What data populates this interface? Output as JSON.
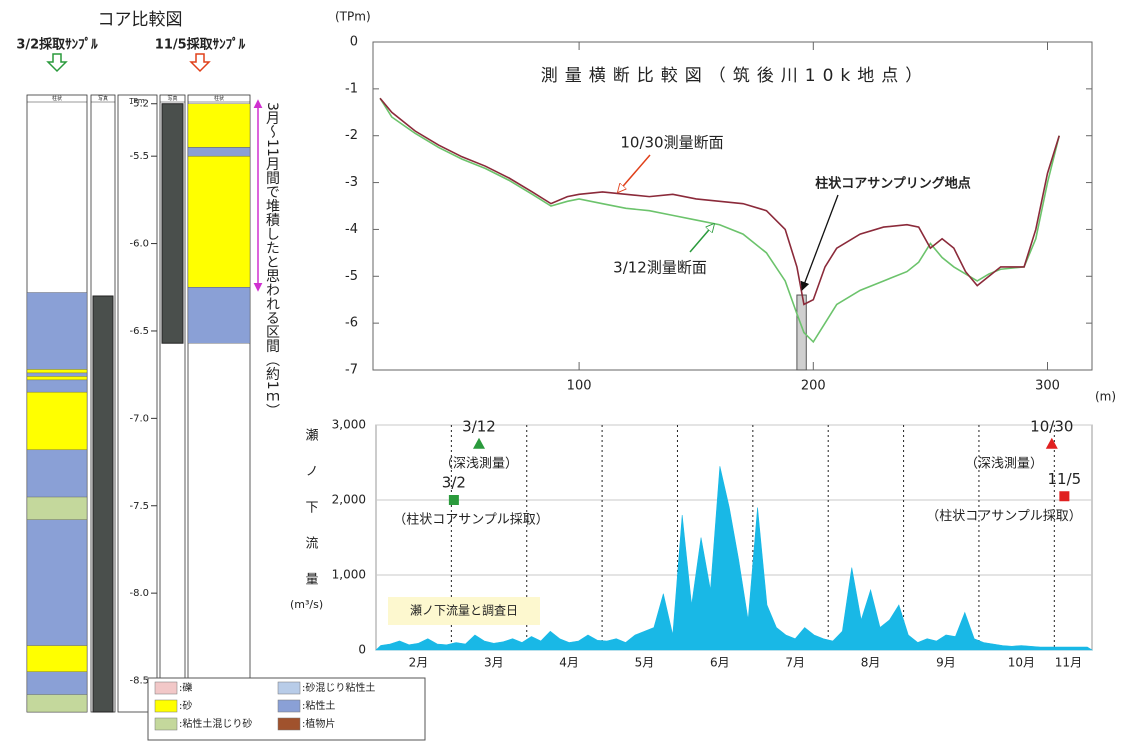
{
  "core_diagram": {
    "title": "コア比較図",
    "axis_label": "TPm",
    "ylim": [
      -8.68,
      -5.15
    ],
    "yticks": [
      -5.2,
      -5.5,
      {
        "value": -6,
        "label": "-6.0"
      },
      -6.5,
      {
        "value": -7,
        "label": "-7.0"
      },
      -7.5,
      {
        "value": -8,
        "label": "-8.0"
      },
      -8.5
    ],
    "column_headers": [
      "柱状",
      "写真"
    ],
    "samples": [
      {
        "label": "3/2採取ｻﾝﾌﾟﾙ",
        "color": "#2a9a3c",
        "photo": [
          -6.3,
          -8.68
        ],
        "layers": [
          {
            "top": -6.28,
            "bottom": -8.68,
            "color": "#8aa0d6"
          },
          {
            "top": -6.72,
            "bottom": -6.74,
            "color": "#ffff00"
          },
          {
            "top": -6.76,
            "bottom": -6.78,
            "color": "#ffff00"
          },
          {
            "top": -6.85,
            "bottom": -7.18,
            "color": "#ffff00"
          },
          {
            "top": -7.45,
            "bottom": -7.58,
            "color": "#c4d89c"
          },
          {
            "top": -8.3,
            "bottom": -8.45,
            "color": "#ffff00"
          },
          {
            "top": -8.58,
            "bottom": -8.68,
            "color": "#c4d89c"
          }
        ]
      },
      {
        "label": "11/5採取ｻﾝﾌﾟﾙ",
        "color": "#e0401a",
        "photo": [
          -5.2,
          -6.57
        ],
        "layers": [
          {
            "top": -5.2,
            "bottom": -5.45,
            "color": "#ffff00"
          },
          {
            "top": -5.45,
            "bottom": -5.5,
            "color": "#8aa0d6"
          },
          {
            "top": -5.5,
            "bottom": -6.25,
            "color": "#ffff00"
          },
          {
            "top": -6.25,
            "bottom": -6.57,
            "color": "#8aa0d6"
          }
        ]
      }
    ],
    "deposit": {
      "text": "3月～11月間で堆積したと思われる区間（約1ｍ）",
      "color": "#d030d0",
      "range": [
        -5.2,
        -6.25
      ]
    },
    "legend": [
      {
        "label": ":礫",
        "color": "#f2c8c8"
      },
      {
        "label": ":砂混じり粘性土",
        "color": "#b8cce8"
      },
      {
        "label": ":砂",
        "color": "#ffff00"
      },
      {
        "label": ":粘性土",
        "color": "#8aa0d6"
      },
      {
        "label": ":粘性土混じり砂",
        "color": "#c4d89c"
      },
      {
        "label": ":植物片",
        "color": "#a0522d"
      }
    ]
  },
  "chart_data": [
    {
      "type": "line",
      "title": "測量横断比較図（筑後川10k地点）",
      "ylabel": "(TPm)",
      "xlabel": "(m)",
      "xlim": [
        12,
        319
      ],
      "xticks": [
        100,
        200,
        300
      ],
      "ylim": [
        -7,
        0
      ],
      "yticks": [
        0,
        -1,
        -2,
        -3,
        -4,
        -5,
        -6,
        -7
      ],
      "x": [
        15,
        20,
        30,
        40,
        50,
        60,
        70,
        80,
        88,
        95,
        100,
        110,
        120,
        130,
        140,
        150,
        160,
        170,
        180,
        188,
        193,
        196,
        200,
        205,
        210,
        220,
        230,
        240,
        245,
        250,
        255,
        260,
        265,
        270,
        275,
        280,
        290,
        295,
        300,
        305
      ],
      "series": [
        {
          "name": "10/30測量断面",
          "color": "#8b2a3a",
          "values": [
            -1.2,
            -1.5,
            -1.9,
            -2.2,
            -2.45,
            -2.65,
            -2.9,
            -3.2,
            -3.45,
            -3.3,
            -3.25,
            -3.2,
            -3.25,
            -3.3,
            -3.25,
            -3.35,
            -3.4,
            -3.45,
            -3.6,
            -4.0,
            -4.8,
            -5.6,
            -5.5,
            -4.8,
            -4.4,
            -4.1,
            -3.95,
            -3.9,
            -3.95,
            -4.4,
            -4.2,
            -4.4,
            -4.9,
            -5.2,
            -5.0,
            -4.8,
            -4.8,
            -4.0,
            -2.8,
            -2.0
          ]
        },
        {
          "name": "3/12測量断面",
          "color": "#6cc36c",
          "values": [
            -1.2,
            -1.6,
            -1.95,
            -2.25,
            -2.5,
            -2.7,
            -2.95,
            -3.25,
            -3.5,
            -3.4,
            -3.35,
            -3.45,
            -3.55,
            -3.6,
            -3.7,
            -3.8,
            -3.9,
            -4.1,
            -4.5,
            -5.1,
            -5.8,
            -6.2,
            -6.4,
            -6.0,
            -5.6,
            -5.3,
            -5.1,
            -4.9,
            -4.7,
            -4.3,
            -4.6,
            -4.8,
            -4.95,
            -5.1,
            -4.95,
            -4.85,
            -4.8,
            -4.2,
            -3.0,
            -2.0
          ]
        }
      ],
      "annotation": "柱状コアサンプリング地点"
    },
    {
      "type": "area",
      "ylabel": "瀬ノ下流量",
      "yunit": "(m³/s)",
      "ylim": [
        0,
        3000
      ],
      "yticks": [
        0,
        {
          "value": 1000,
          "label": "1,000"
        },
        {
          "value": 2000,
          "label": "2,000"
        },
        {
          "value": 3000,
          "label": "3,000"
        }
      ],
      "grid": true,
      "color": "#19b8e6",
      "annotation": "瀬ノ下流量と調査日",
      "categories": [
        null,
        null,
        null,
        null,
        "2月",
        null,
        null,
        null,
        null,
        null,
        null,
        null,
        "3月",
        null,
        null,
        null,
        null,
        null,
        null,
        null,
        "4月",
        null,
        null,
        null,
        null,
        null,
        null,
        null,
        "5月",
        null,
        null,
        null,
        null,
        null,
        null,
        null,
        "6月",
        null,
        null,
        null,
        null,
        null,
        null,
        null,
        "7月",
        null,
        null,
        null,
        null,
        null,
        null,
        null,
        "8月",
        null,
        null,
        null,
        null,
        null,
        null,
        null,
        "9月",
        null,
        null,
        null,
        null,
        null,
        null,
        null,
        "10月",
        null,
        null,
        null,
        null,
        "11月",
        null,
        null
      ],
      "values": [
        60,
        80,
        120,
        70,
        90,
        150,
        80,
        70,
        100,
        80,
        200,
        120,
        90,
        110,
        150,
        100,
        180,
        120,
        250,
        150,
        100,
        120,
        200,
        130,
        120,
        150,
        100,
        200,
        250,
        300,
        750,
        200,
        1800,
        600,
        1500,
        800,
        2450,
        1900,
        1200,
        400,
        1900,
        600,
        300,
        200,
        150,
        300,
        200,
        150,
        120,
        250,
        1100,
        400,
        800,
        300,
        400,
        600,
        200,
        100,
        150,
        120,
        200,
        180,
        500,
        150,
        100,
        80,
        60,
        50,
        60,
        50,
        40,
        40,
        40,
        40,
        40,
        40
      ],
      "events": [
        {
          "date": "3/2",
          "note": "（柱状コアサンプル採取）",
          "value": 2000,
          "marker": "square",
          "color": "#2a9a3c"
        },
        {
          "date": "3/12",
          "note": "（深浅測量）",
          "value": 2750,
          "marker": "triangle",
          "color": "#2a9a3c"
        },
        {
          "date": "10/30",
          "note": "（深浅測量）",
          "value": 2750,
          "marker": "triangle",
          "color": "#e02020"
        },
        {
          "date": "11/5",
          "note": "（柱状コアサンプル採取）",
          "value": 2050,
          "marker": "square",
          "color": "#e02020"
        }
      ]
    }
  ]
}
